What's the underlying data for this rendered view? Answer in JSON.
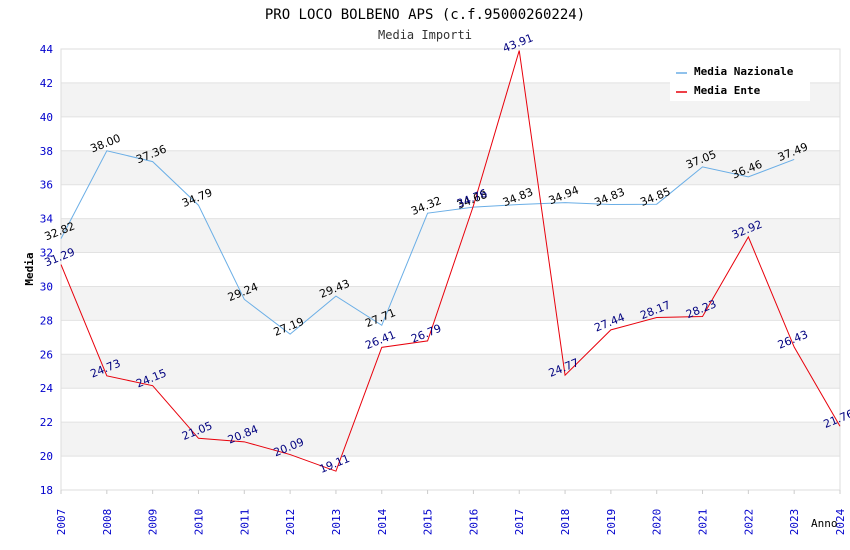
{
  "chart_data": {
    "type": "line",
    "title": "PRO LOCO BOLBENO APS (c.f.95000260224)",
    "subtitle": "Media Importi",
    "xlabel": "Anno",
    "ylabel": "Media",
    "ylim": [
      18,
      44
    ],
    "yticks": [
      18,
      20,
      22,
      24,
      26,
      28,
      30,
      32,
      34,
      36,
      38,
      40,
      42,
      44
    ],
    "x": [
      2007,
      2008,
      2009,
      2010,
      2011,
      2012,
      2013,
      2014,
      2015,
      2016,
      2017,
      2018,
      2019,
      2020,
      2021,
      2022,
      2023,
      2024
    ],
    "legend_position": "top-right",
    "grid": true,
    "series": [
      {
        "name": "Media Nazionale",
        "color": "#6aaee6",
        "label_color": "#000000",
        "values": [
          32.82,
          38.0,
          37.36,
          34.79,
          29.24,
          27.19,
          29.43,
          27.71,
          34.32,
          34.68,
          34.83,
          34.94,
          34.83,
          34.85,
          37.05,
          36.46,
          37.49,
          null
        ],
        "labels": [
          "32.82",
          "38.00",
          "37.36",
          "34.79",
          "29.24",
          "27.19",
          "29.43",
          "27.71",
          "34.32",
          "34.68",
          "34.83",
          "34.94",
          "34.83",
          "34.85",
          "37.05",
          "36.46",
          "37.49",
          ""
        ]
      },
      {
        "name": "Media Ente",
        "color": "#e8000b",
        "label_color": "#00007f",
        "values": [
          31.29,
          24.73,
          24.15,
          21.05,
          20.84,
          20.09,
          19.11,
          26.41,
          26.79,
          34.76,
          43.91,
          24.77,
          27.44,
          28.17,
          28.23,
          32.92,
          26.43,
          21.76
        ],
        "labels": [
          "31.29",
          "24.73",
          "24.15",
          "21.05",
          "20.84",
          "20.09",
          "19.11",
          "26.41",
          "26.79",
          "34.76",
          "43.91",
          "24.77",
          "27.44",
          "28.17",
          "28.23",
          "32.92",
          "26.43",
          "21.76"
        ]
      }
    ]
  }
}
